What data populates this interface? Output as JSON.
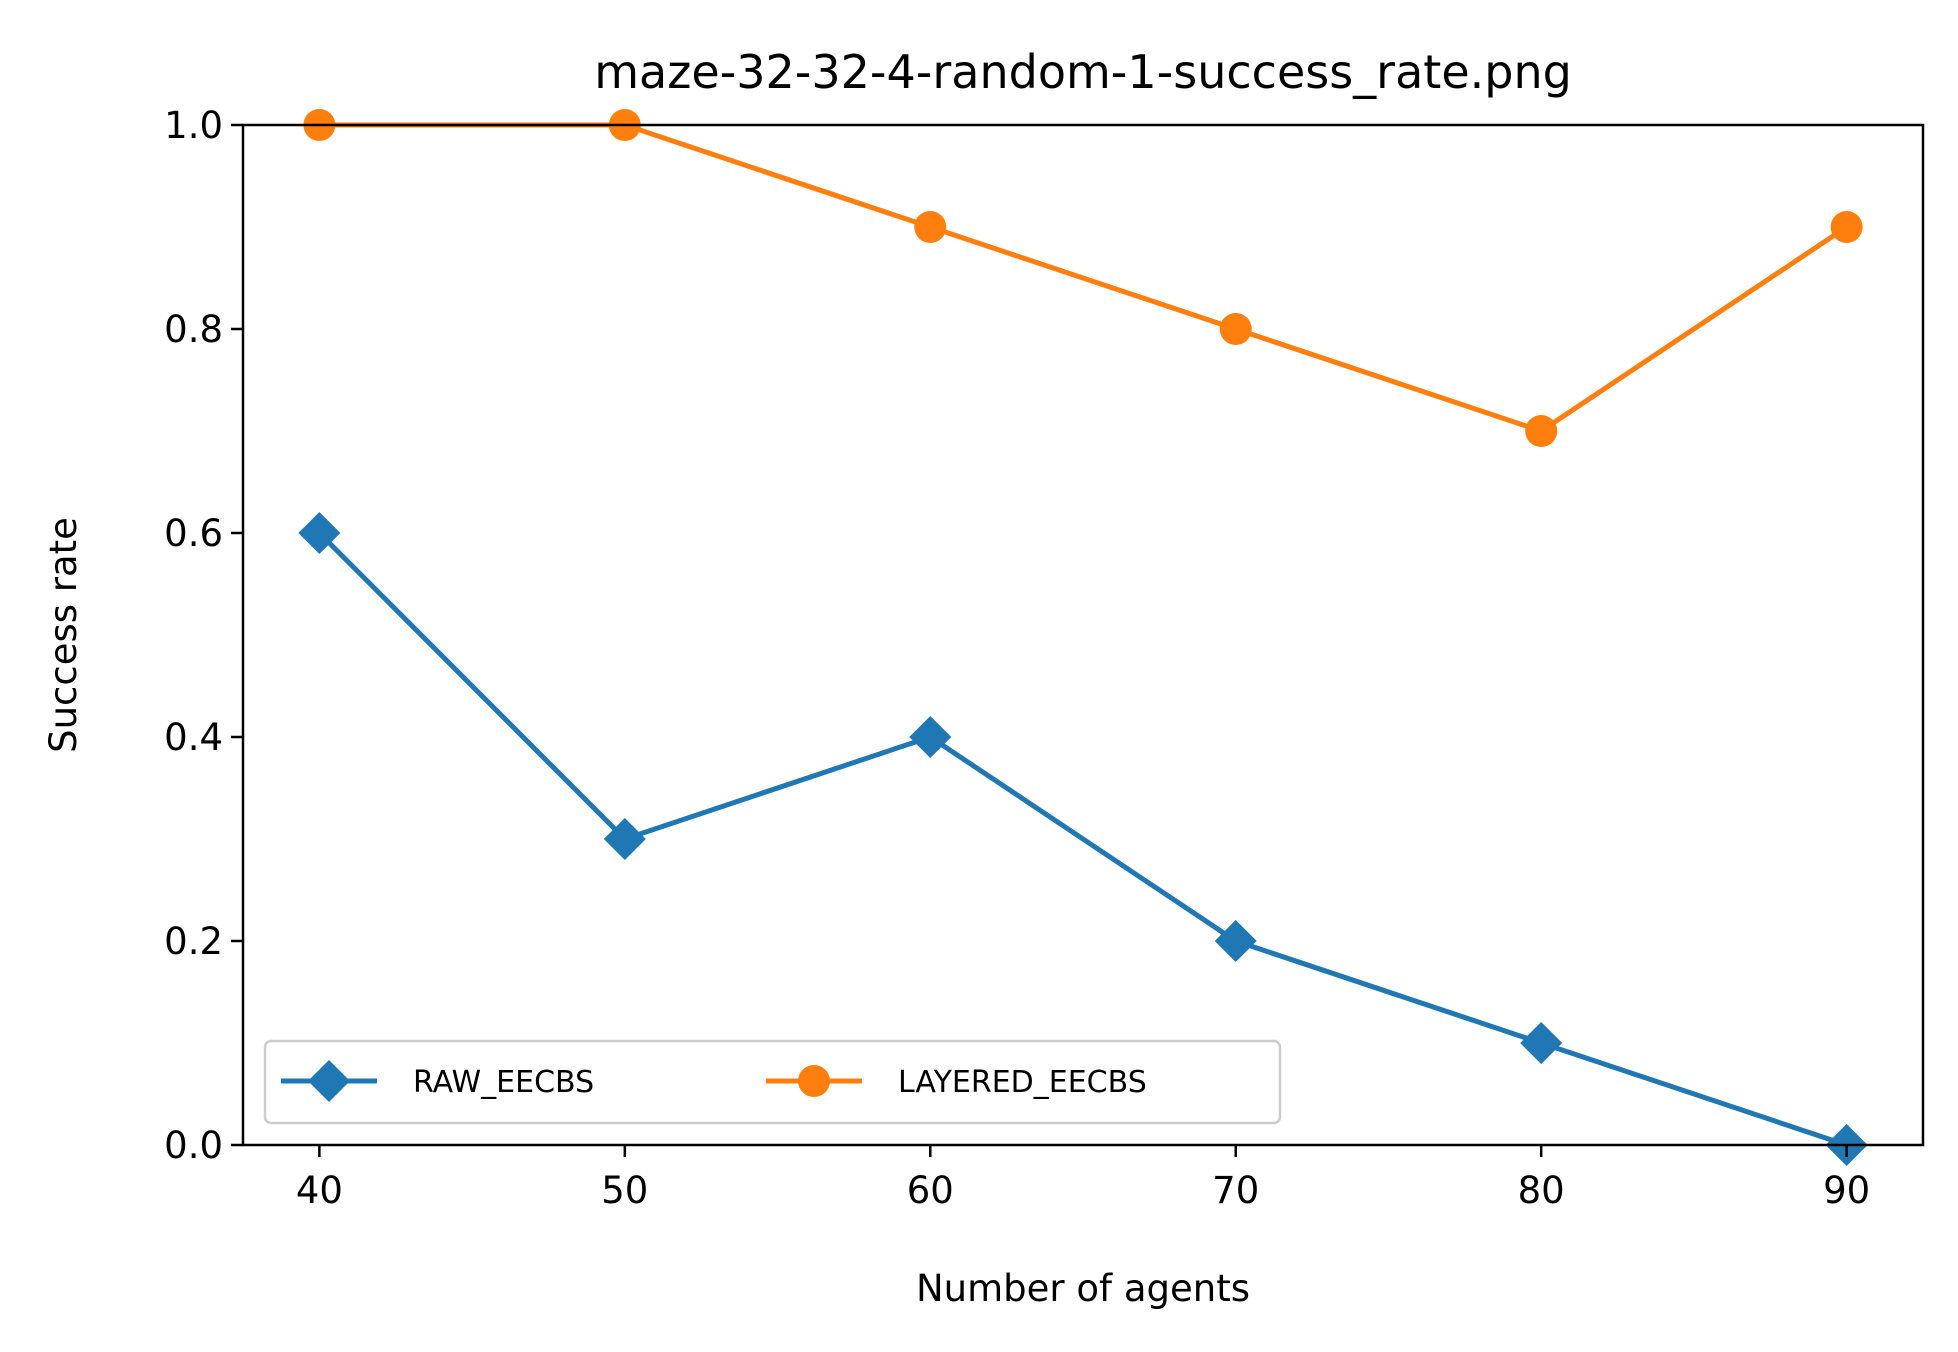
{
  "chart_data": {
    "type": "line",
    "title": "maze-32-32-4-random-1-success_rate.png",
    "xlabel": "Number of agents",
    "ylabel": "Success rate",
    "x": [
      40,
      50,
      60,
      70,
      80,
      90
    ],
    "xticks": [
      "40",
      "50",
      "60",
      "70",
      "80",
      "90"
    ],
    "xlim": [
      37.5,
      92.5
    ],
    "yticks": [
      "0.0",
      "0.2",
      "0.4",
      "0.6",
      "0.8",
      "1.0"
    ],
    "ylim": [
      0,
      1
    ],
    "grid": false,
    "legend_position": "lower-left",
    "series": [
      {
        "name": "RAW_EECBS",
        "values": [
          0.6,
          0.3,
          0.4,
          0.2,
          0.1,
          0.0
        ],
        "color": "#1f77b4",
        "marker": "diamond"
      },
      {
        "name": "LAYERED_EECBS",
        "values": [
          1.0,
          1.0,
          0.9,
          0.8,
          0.7,
          0.9
        ],
        "color": "#ff7f0e",
        "marker": "circle"
      }
    ]
  }
}
